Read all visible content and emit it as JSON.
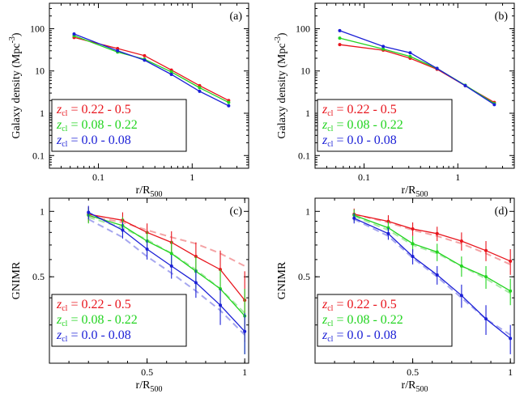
{
  "figure": {
    "legend_entries": [
      {
        "z_symbol": "z",
        "z_sub": "cl",
        "range": " = 0.22 - 0.5",
        "color": "#e8141c"
      },
      {
        "z_symbol": "z",
        "z_sub": "cl",
        "range": " = 0.08 - 0.22",
        "color": "#23d420"
      },
      {
        "z_symbol": "z",
        "z_sub": "cl",
        "range": " = 0.0 - 0.08",
        "color": "#1b1fd6"
      }
    ]
  },
  "chart_data": [
    {
      "panel": "(a)",
      "type": "line",
      "xscale": "log",
      "yscale": "log",
      "xlim": [
        0.03,
        4
      ],
      "ylim": [
        0.05,
        400
      ],
      "xticks": [
        0.1,
        1
      ],
      "xtick_labels": [
        "0.1",
        "1"
      ],
      "yticks": [
        0.1,
        1,
        10,
        100
      ],
      "ytick_labels": [
        "0.1",
        "1",
        "10",
        "100"
      ],
      "xlabel": "r/R",
      "xlabel_sub": "500",
      "ylabel": "Galaxy density (Mpc",
      "ylabel_sup": "-3",
      "ylabel_end": ")",
      "x": [
        0.055,
        0.16,
        0.31,
        0.6,
        1.2,
        2.45
      ],
      "series": [
        {
          "name": "z_cl = 0.22 - 0.5",
          "color": "#e8141c",
          "values": [
            62,
            34,
            23,
            10.5,
            4.5,
            2.0
          ]
        },
        {
          "name": "z_cl = 0.08 - 0.22",
          "color": "#23d420",
          "values": [
            68,
            28,
            19,
            9.5,
            4.0,
            1.8
          ]
        },
        {
          "name": "z_cl = 0.0 - 0.08",
          "color": "#1b1fd6",
          "values": [
            75,
            30,
            18,
            8.3,
            3.3,
            1.5
          ]
        }
      ]
    },
    {
      "panel": "(b)",
      "type": "line",
      "xscale": "log",
      "yscale": "log",
      "xlim": [
        0.03,
        4
      ],
      "ylim": [
        0.05,
        400
      ],
      "xticks": [
        0.1,
        1
      ],
      "xtick_labels": [
        "0.1",
        "1"
      ],
      "yticks": [
        0.1,
        1,
        10,
        100
      ],
      "ytick_labels": [
        "0.1",
        "1",
        "10",
        "100"
      ],
      "xlabel": "r/R",
      "xlabel_sub": "500",
      "ylabel": "Galaxy density (Mpc",
      "ylabel_sup": "-3",
      "ylabel_end": ")",
      "x": [
        0.055,
        0.16,
        0.31,
        0.6,
        1.2,
        2.45
      ],
      "series": [
        {
          "name": "z_cl = 0.22 - 0.5",
          "color": "#e8141c",
          "values": [
            42,
            31,
            20,
            11,
            4.5,
            1.8
          ]
        },
        {
          "name": "z_cl = 0.08 - 0.22",
          "color": "#23d420",
          "values": [
            60,
            33,
            22,
            11.5,
            4.6,
            1.7
          ]
        },
        {
          "name": "z_cl = 0.0 - 0.08",
          "color": "#1b1fd6",
          "values": [
            90,
            38,
            27,
            11.5,
            4.5,
            1.6
          ]
        }
      ]
    },
    {
      "panel": "(c)",
      "type": "line",
      "xscale": "linear",
      "yscale": "log",
      "xlim": [
        0,
        1.02
      ],
      "ylim": [
        0.2,
        1.15
      ],
      "xticks": [
        0.5,
        1
      ],
      "xtick_labels": [
        "0.5",
        "1"
      ],
      "yticks": [
        0.5,
        1
      ],
      "ytick_labels": [
        "0.5",
        "1"
      ],
      "xlabel": "r/R",
      "xlabel_sub": "500",
      "ylabel": "GNIMR",
      "x": [
        0.2,
        0.375,
        0.5,
        0.625,
        0.75,
        0.875,
        1.0
      ],
      "series": [
        {
          "name": "z_cl = 0.22 - 0.5",
          "color": "#e8141c",
          "values": [
            0.97,
            0.91,
            0.8,
            0.72,
            0.62,
            0.54,
            0.39
          ],
          "errors": [
            0.08,
            0.08,
            0.08,
            0.09,
            0.1,
            0.12,
            0.14
          ]
        },
        {
          "name": "z_cl = 0.08 - 0.22",
          "color": "#23d420",
          "values": [
            0.96,
            0.86,
            0.73,
            0.64,
            0.53,
            0.44,
            0.33
          ],
          "errors": [
            0.08,
            0.08,
            0.08,
            0.09,
            0.09,
            0.1,
            0.11
          ]
        },
        {
          "name": "z_cl = 0.0 - 0.08",
          "color": "#1b1fd6",
          "values": [
            0.99,
            0.82,
            0.67,
            0.56,
            0.47,
            0.37,
            0.28
          ],
          "errors": [
            0.07,
            0.07,
            0.07,
            0.07,
            0.07,
            0.07,
            0.06
          ]
        },
        {
          "name": "z_cl = 0.22 - 0.5 (dashed)",
          "color": "#f4a3a5",
          "dashed": true,
          "values": [
            0.95,
            0.89,
            0.82,
            0.76,
            0.71,
            0.64,
            0.56
          ]
        },
        {
          "name": "z_cl = 0.08 - 0.22 (dashed)",
          "color": "#a7eaa5",
          "dashed": true,
          "values": [
            0.94,
            0.84,
            0.74,
            0.64,
            0.54,
            0.44,
            0.34
          ]
        },
        {
          "name": "z_cl = 0.0 - 0.08 (dashed)",
          "color": "#a5a6ef",
          "dashed": true,
          "values": [
            0.92,
            0.76,
            0.62,
            0.52,
            0.43,
            0.35,
            0.27
          ]
        }
      ]
    },
    {
      "panel": "(d)",
      "type": "line",
      "xscale": "linear",
      "yscale": "log",
      "xlim": [
        0,
        1.02
      ],
      "ylim": [
        0.2,
        1.15
      ],
      "xticks": [
        0.5,
        1
      ],
      "xtick_labels": [
        "0.5",
        "1"
      ],
      "yticks": [
        0.5,
        1
      ],
      "ytick_labels": [
        "0.5",
        "1"
      ],
      "xlabel": "r/R",
      "xlabel_sub": "500",
      "ylabel": "GNIMR",
      "x": [
        0.2,
        0.375,
        0.5,
        0.625,
        0.75,
        0.875,
        1.0
      ],
      "series": [
        {
          "name": "z_cl = 0.22 - 0.5",
          "color": "#e8141c",
          "values": [
            0.97,
            0.9,
            0.83,
            0.79,
            0.73,
            0.66,
            0.59
          ],
          "errors": [
            0.06,
            0.06,
            0.06,
            0.06,
            0.07,
            0.07,
            0.08
          ]
        },
        {
          "name": "z_cl = 0.08 - 0.22",
          "color": "#23d420",
          "values": [
            0.96,
            0.84,
            0.71,
            0.65,
            0.56,
            0.5,
            0.43
          ],
          "errors": [
            0.06,
            0.06,
            0.06,
            0.06,
            0.06,
            0.06,
            0.06
          ]
        },
        {
          "name": "z_cl = 0.0 - 0.08",
          "color": "#1b1fd6",
          "values": [
            0.93,
            0.79,
            0.62,
            0.51,
            0.41,
            0.32,
            0.26
          ],
          "errors": [
            0.05,
            0.05,
            0.05,
            0.05,
            0.05,
            0.05,
            0.04
          ]
        },
        {
          "name": "z_cl = 0.22 - 0.5 (dashed)",
          "color": "#f4a3a5",
          "dashed": true,
          "values": [
            0.97,
            0.89,
            0.82,
            0.77,
            0.71,
            0.64,
            0.57
          ]
        },
        {
          "name": "z_cl = 0.08 - 0.22 (dashed)",
          "color": "#a7eaa5",
          "dashed": true,
          "values": [
            0.95,
            0.82,
            0.7,
            0.64,
            0.56,
            0.49,
            0.42
          ]
        },
        {
          "name": "z_cl = 0.0 - 0.08 (dashed)",
          "color": "#a5a6ef",
          "dashed": true,
          "values": [
            0.92,
            0.77,
            0.61,
            0.5,
            0.4,
            0.32,
            0.27
          ]
        }
      ]
    }
  ]
}
